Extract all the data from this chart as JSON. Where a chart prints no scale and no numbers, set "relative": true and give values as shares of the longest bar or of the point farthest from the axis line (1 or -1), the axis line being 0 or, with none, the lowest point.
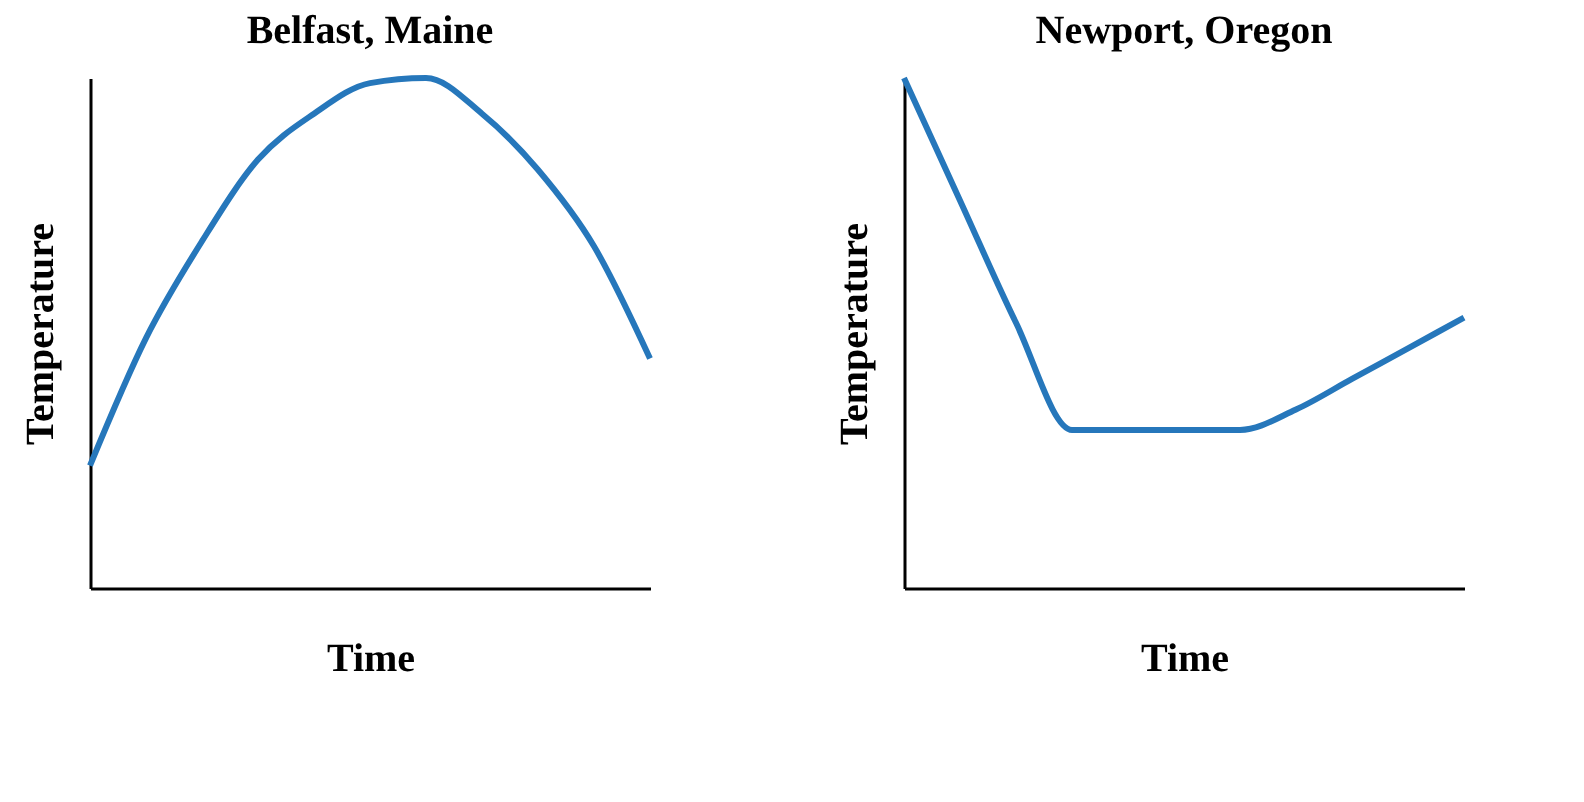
{
  "chart_data": [
    {
      "type": "line",
      "title": "Belfast, Maine",
      "xlabel": "Time",
      "ylabel": "Temperature",
      "relative": true,
      "tick_labels": false,
      "grid": false,
      "categories": [
        null,
        null,
        null,
        null,
        null,
        null,
        null,
        null,
        null,
        null,
        null
      ],
      "series": [
        {
          "color": "#2677bb",
          "values": [
            0.24,
            0.49,
            0.68,
            0.84,
            0.93,
            0.99,
            1.0,
            0.93,
            0.82,
            0.67,
            0.45
          ]
        }
      ]
    },
    {
      "type": "line",
      "title": "Newport, Oregon",
      "xlabel": "Time",
      "ylabel": "Temperature",
      "relative": true,
      "tick_labels": false,
      "grid": false,
      "categories": [
        null,
        null,
        null,
        null,
        null,
        null,
        null,
        null,
        null,
        null,
        null
      ],
      "series": [
        {
          "color": "#2677bb",
          "values": [
            1.0,
            0.76,
            0.52,
            0.31,
            0.31,
            0.31,
            0.31,
            0.35,
            0.41,
            0.47,
            0.53
          ]
        }
      ]
    }
  ]
}
